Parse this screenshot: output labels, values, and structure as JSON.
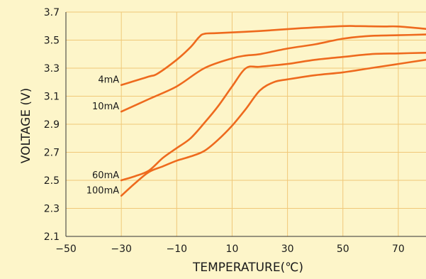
{
  "chart_data": {
    "type": "line",
    "title": "",
    "xlabel": "TEMPERATURE(℃)",
    "ylabel": "VOLTAGE (V)",
    "xlim": [
      -50,
      80
    ],
    "ylim": [
      2.1,
      3.7
    ],
    "x_ticks": [
      -50,
      -30,
      -10,
      10,
      30,
      50,
      70
    ],
    "x_tick_labels": [
      "−50",
      "−30",
      "−10",
      "10",
      "30",
      "50",
      "70"
    ],
    "y_ticks": [
      2.1,
      2.3,
      2.5,
      2.7,
      2.9,
      3.1,
      3.3,
      3.5,
      3.7
    ],
    "y_tick_labels": [
      "2.1",
      "2.3",
      "2.5",
      "2.7",
      "2.9",
      "3.1",
      "3.3",
      "3.5",
      "3.7"
    ],
    "grid": true,
    "colors": {
      "background": "#fdf5c9",
      "grid": "#f0c878",
      "line": "#ee6a1e",
      "axis": "#333333"
    },
    "series": [
      {
        "name": "4mA",
        "x": [
          -30,
          -20,
          -17,
          -10,
          -5,
          -2,
          0,
          5,
          20,
          35,
          50,
          55,
          60,
          65,
          70,
          80
        ],
        "y": [
          3.18,
          3.24,
          3.26,
          3.36,
          3.45,
          3.52,
          3.545,
          3.55,
          3.565,
          3.585,
          3.6,
          3.6,
          3.598,
          3.597,
          3.597,
          3.58
        ]
      },
      {
        "name": "10mA",
        "x": [
          -30,
          -20,
          -10,
          0,
          10,
          15,
          20,
          30,
          40,
          50,
          60,
          70,
          80
        ],
        "y": [
          2.99,
          3.08,
          3.17,
          3.3,
          3.37,
          3.39,
          3.4,
          3.44,
          3.47,
          3.51,
          3.53,
          3.535,
          3.54
        ]
      },
      {
        "name": "60mA",
        "x": [
          -30,
          -25,
          -20,
          -15,
          -10,
          -5,
          0,
          5,
          10,
          15,
          20,
          30,
          40,
          50,
          60,
          70,
          80
        ],
        "y": [
          2.5,
          2.53,
          2.57,
          2.66,
          2.73,
          2.8,
          2.91,
          3.03,
          3.17,
          3.3,
          3.31,
          3.33,
          3.36,
          3.38,
          3.4,
          3.405,
          3.41
        ]
      },
      {
        "name": "100mA",
        "x": [
          -30,
          -25,
          -20,
          -15,
          -10,
          -5,
          0,
          5,
          10,
          15,
          20,
          25,
          30,
          40,
          50,
          60,
          70,
          80
        ],
        "y": [
          2.39,
          2.48,
          2.56,
          2.6,
          2.64,
          2.67,
          2.71,
          2.79,
          2.89,
          3.01,
          3.14,
          3.2,
          3.22,
          3.25,
          3.27,
          3.3,
          3.33,
          3.36
        ]
      }
    ]
  }
}
